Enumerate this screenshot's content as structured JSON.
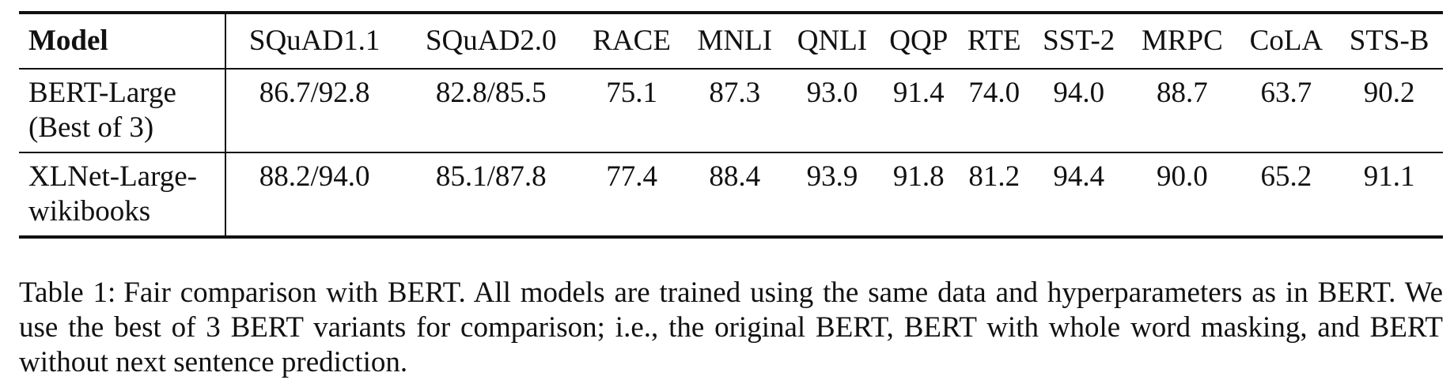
{
  "table": {
    "headers": [
      "Model",
      "SQuAD1.1",
      "SQuAD2.0",
      "RACE",
      "MNLI",
      "QNLI",
      "QQP",
      "RTE",
      "SST-2",
      "MRPC",
      "CoLA",
      "STS-B"
    ],
    "rows": [
      {
        "model": [
          "BERT-Large",
          "(Best of 3)"
        ],
        "values": [
          "86.7/92.8",
          "82.8/85.5",
          "75.1",
          "87.3",
          "93.0",
          "91.4",
          "74.0",
          "94.0",
          "88.7",
          "63.7",
          "90.2"
        ]
      },
      {
        "model": [
          "XLNet-Large-",
          "wikibooks"
        ],
        "values": [
          "88.2/94.0",
          "85.1/87.8",
          "77.4",
          "88.4",
          "93.9",
          "91.8",
          "81.2",
          "94.4",
          "90.0",
          "65.2",
          "91.1"
        ]
      }
    ]
  },
  "caption": {
    "label": "Table 1:",
    "text": "Fair comparison with BERT. All models are trained using the same data and hyperparameters as in BERT. We use the best of 3 BERT variants for comparison; i.e., the original BERT, BERT with whole word masking, and BERT without next sentence prediction."
  }
}
